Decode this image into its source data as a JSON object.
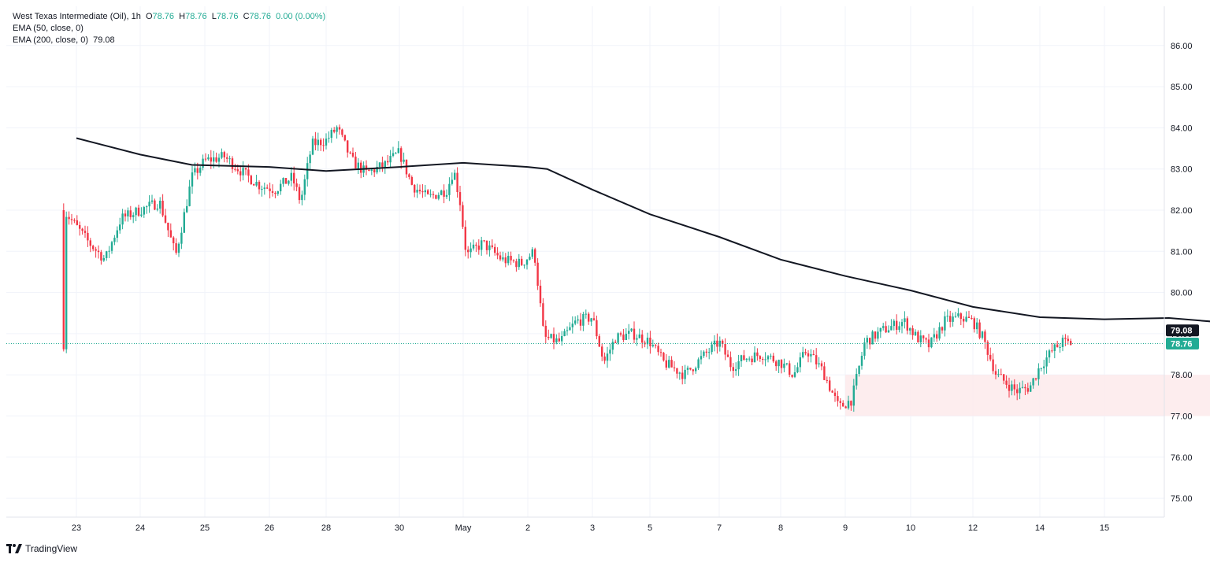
{
  "legend": {
    "symbol": "West Texas Intermediate (Oil), 1h",
    "ohlc": {
      "o_label": "O",
      "o": "78.76",
      "h_label": "H",
      "h": "78.76",
      "l_label": "L",
      "l": "78.76",
      "c_label": "C",
      "c": "78.76",
      "change": "0.00 (0.00%)"
    },
    "ema50": "EMA (50, close, 0)",
    "ema200": "EMA (200, close, 0)",
    "ema200_value": "79.08"
  },
  "branding": {
    "text": "TradingView"
  },
  "colors": {
    "up": "#22ab94",
    "down": "#f23645",
    "ema": "#131722",
    "zone": "#fde8ea",
    "grid": "#f0f3fa",
    "price_line": "#22ab94"
  },
  "chart_data": {
    "type": "candlestick",
    "x_ticks": [
      "23",
      "24",
      "25",
      "26",
      "28",
      "30",
      "May",
      "2",
      "3",
      "5",
      "7",
      "8",
      "9",
      "10",
      "12",
      "14",
      "15"
    ],
    "y_ticks": [
      "75.00",
      "76.00",
      "77.00",
      "78.00",
      "79.00",
      "80.00",
      "81.00",
      "82.00",
      "83.00",
      "84.00",
      "85.00",
      "86.00"
    ],
    "ylim": [
      74.5,
      86.5
    ],
    "last_price": 78.76,
    "last_price_label": "78.76",
    "ema200_label": "79.08",
    "support_zone": {
      "y_low": 77.0,
      "y_high": 78.0,
      "x_from": 12.0,
      "x_to": 19.55
    },
    "ema200": [
      [
        0,
        83.75
      ],
      [
        1,
        83.35
      ],
      [
        1.8,
        83.1
      ],
      [
        3,
        83.05
      ],
      [
        4,
        82.95
      ],
      [
        5,
        83.05
      ],
      [
        6,
        83.15
      ],
      [
        7,
        83.05
      ],
      [
        7.3,
        83.0
      ],
      [
        8,
        82.5
      ],
      [
        9,
        81.9
      ],
      [
        10,
        81.35
      ],
      [
        11,
        80.8
      ],
      [
        12,
        80.4
      ],
      [
        13,
        80.05
      ],
      [
        14,
        79.65
      ],
      [
        15,
        79.4
      ],
      [
        16,
        79.35
      ],
      [
        17,
        79.38
      ],
      [
        18,
        79.25
      ],
      [
        19,
        79.1
      ],
      [
        19.5,
        79.08
      ]
    ],
    "close_path": [
      [
        -0.2,
        82.0
      ],
      [
        0.2,
        81.2
      ],
      [
        0.45,
        80.8
      ],
      [
        0.7,
        81.8
      ],
      [
        1.0,
        82.0
      ],
      [
        1.3,
        82.2
      ],
      [
        1.55,
        80.9
      ],
      [
        1.8,
        82.8
      ],
      [
        2.0,
        83.2
      ],
      [
        2.3,
        83.3
      ],
      [
        2.6,
        82.9
      ],
      [
        2.85,
        82.6
      ],
      [
        3.1,
        82.5
      ],
      [
        3.4,
        82.8
      ],
      [
        3.55,
        82.2
      ],
      [
        3.75,
        83.6
      ],
      [
        4.0,
        83.7
      ],
      [
        4.15,
        84.0
      ],
      [
        4.35,
        83.2
      ],
      [
        4.55,
        82.9
      ],
      [
        4.8,
        83.1
      ],
      [
        5.0,
        83.4
      ],
      [
        5.2,
        82.6
      ],
      [
        5.45,
        82.3
      ],
      [
        5.75,
        82.5
      ],
      [
        5.85,
        83.0
      ],
      [
        5.95,
        82.2
      ],
      [
        6.05,
        80.9
      ],
      [
        6.3,
        81.2
      ],
      [
        6.6,
        80.8
      ],
      [
        6.9,
        80.7
      ],
      [
        7.1,
        81.0
      ],
      [
        7.25,
        78.9
      ],
      [
        7.5,
        78.8
      ],
      [
        7.75,
        79.3
      ],
      [
        8.0,
        79.4
      ],
      [
        8.2,
        78.3
      ],
      [
        8.4,
        78.9
      ],
      [
        8.7,
        79.0
      ],
      [
        9.0,
        78.8
      ],
      [
        9.2,
        78.3
      ],
      [
        9.5,
        78.0
      ],
      [
        9.8,
        78.5
      ],
      [
        10.0,
        78.8
      ],
      [
        10.2,
        78.2
      ],
      [
        10.4,
        78.4
      ],
      [
        10.7,
        78.5
      ],
      [
        11.0,
        78.3
      ],
      [
        11.2,
        78.0
      ],
      [
        11.4,
        78.6
      ],
      [
        11.65,
        78.1
      ],
      [
        11.9,
        77.2
      ],
      [
        12.1,
        77.4
      ],
      [
        12.3,
        78.8
      ],
      [
        12.6,
        79.1
      ],
      [
        12.9,
        79.3
      ],
      [
        13.1,
        78.9
      ],
      [
        13.3,
        78.7
      ],
      [
        13.55,
        79.3
      ],
      [
        13.8,
        79.4
      ],
      [
        14.0,
        79.3
      ],
      [
        14.15,
        78.9
      ],
      [
        14.35,
        78.0
      ],
      [
        14.65,
        77.6
      ],
      [
        14.85,
        77.7
      ],
      [
        15.0,
        78.2
      ],
      [
        15.2,
        78.6
      ],
      [
        15.35,
        78.8
      ],
      [
        15.5,
        78.76
      ]
    ]
  }
}
